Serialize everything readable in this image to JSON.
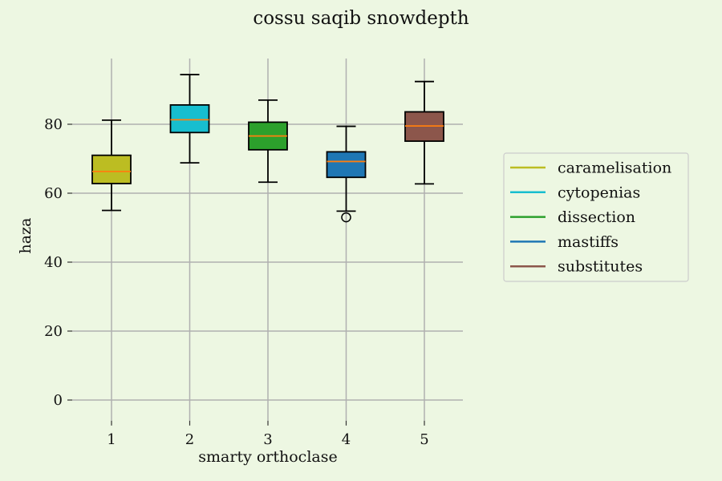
{
  "chart_data": {
    "type": "box",
    "title": "cossu saqib snowdepth",
    "xlabel": "smarty orthoclase",
    "ylabel": "haza",
    "ylim": [
      -6,
      100
    ],
    "yticks": [
      0,
      20,
      40,
      60,
      80
    ],
    "grid": true,
    "legend_position": "right",
    "categories": [
      "1",
      "2",
      "3",
      "4",
      "5"
    ],
    "series": [
      {
        "name": "caramelisation",
        "color": "#bcbd22",
        "whisker_low": 55,
        "q1": 62.8,
        "median": 66.3,
        "q3": 71,
        "whisker_high": 81.2,
        "outliers": []
      },
      {
        "name": "cytopenias",
        "color": "#17becf",
        "whisker_low": 68.8,
        "q1": 77.6,
        "median": 81.3,
        "q3": 85.6,
        "whisker_high": 94.4,
        "outliers": []
      },
      {
        "name": "dissection",
        "color": "#2ca02c",
        "whisker_low": 63.2,
        "q1": 72.6,
        "median": 76.6,
        "q3": 80.6,
        "whisker_high": 87,
        "outliers": []
      },
      {
        "name": "mastiffs",
        "color": "#1f77b4",
        "whisker_low": 54.8,
        "q1": 64.6,
        "median": 69.2,
        "q3": 72,
        "whisker_high": 79.4,
        "outliers": [
          53
        ]
      },
      {
        "name": "substitutes",
        "color": "#8c564b",
        "whisker_low": 62.7,
        "q1": 75.1,
        "median": 79.5,
        "q3": 83.6,
        "whisker_high": 92.4,
        "outliers": []
      }
    ]
  }
}
